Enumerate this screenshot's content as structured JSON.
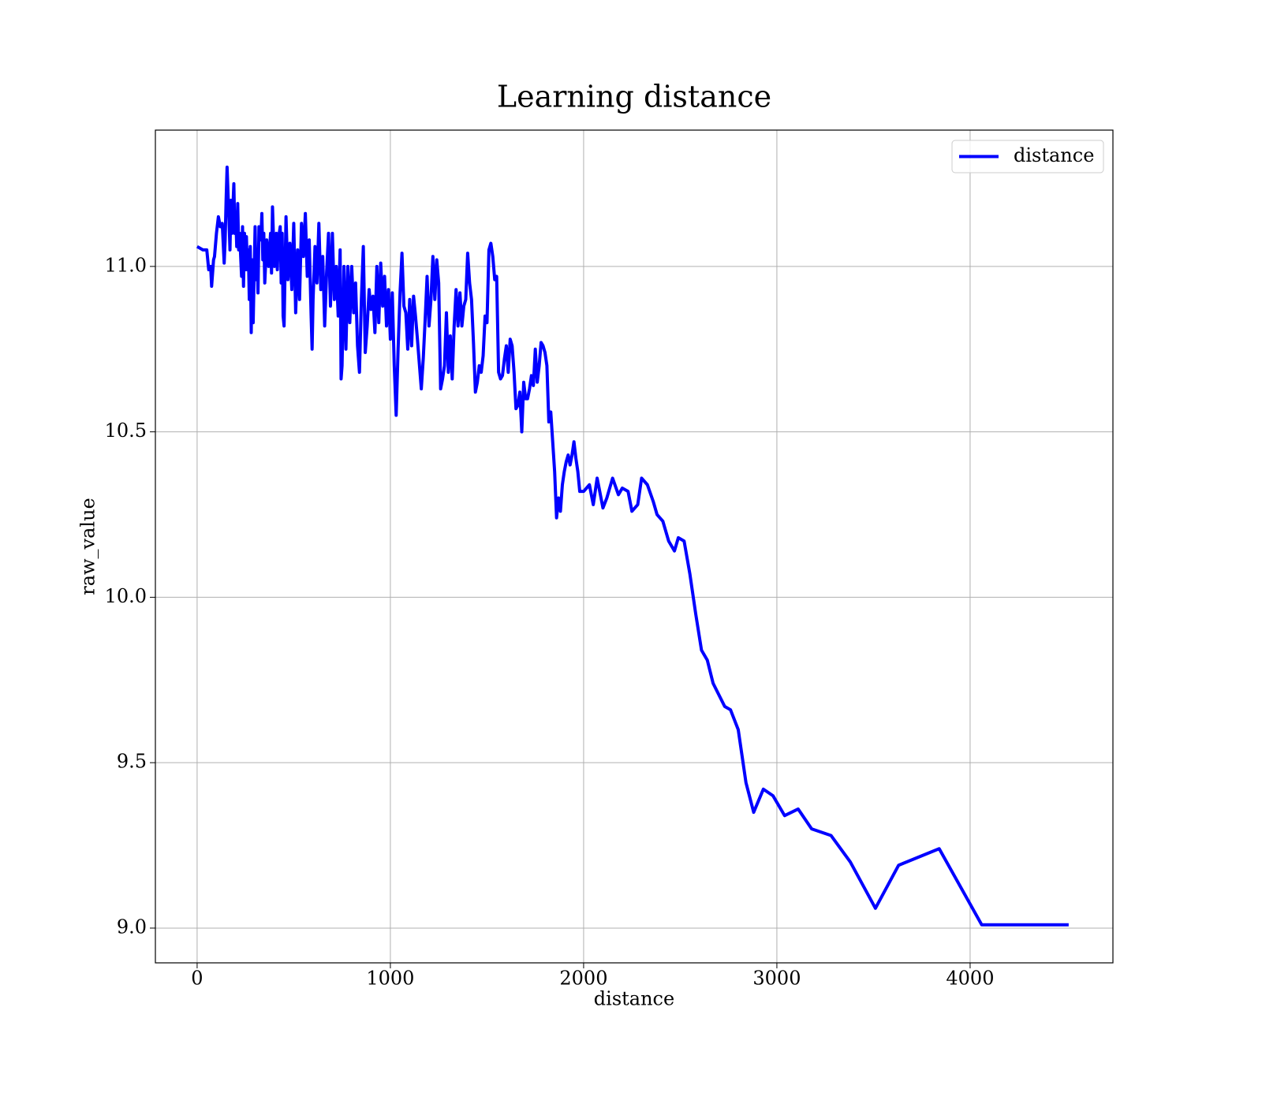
{
  "chart_data": {
    "type": "line",
    "title": "Learning distance",
    "xlabel": "distance",
    "ylabel": "raw_value",
    "x": [
      0,
      30,
      50,
      60,
      70,
      75,
      85,
      90,
      100,
      110,
      120,
      130,
      140,
      145,
      150,
      155,
      160,
      165,
      170,
      175,
      180,
      190,
      195,
      200,
      205,
      210,
      215,
      220,
      230,
      235,
      240,
      245,
      250,
      255,
      260,
      265,
      270,
      275,
      280,
      285,
      290,
      300,
      305,
      310,
      315,
      320,
      330,
      335,
      340,
      345,
      350,
      360,
      370,
      380,
      385,
      390,
      400,
      410,
      415,
      420,
      430,
      435,
      440,
      445,
      450,
      460,
      470,
      480,
      490,
      500,
      510,
      520,
      530,
      540,
      550,
      560,
      570,
      580,
      590,
      595,
      600,
      610,
      620,
      630,
      640,
      650,
      660,
      670,
      680,
      690,
      700,
      710,
      720,
      730,
      740,
      745,
      750,
      760,
      770,
      780,
      790,
      800,
      810,
      820,
      830,
      840,
      850,
      860,
      870,
      880,
      890,
      900,
      910,
      920,
      930,
      940,
      950,
      960,
      970,
      980,
      990,
      1000,
      1010,
      1020,
      1030,
      1040,
      1050,
      1060,
      1070,
      1080,
      1090,
      1100,
      1110,
      1120,
      1130,
      1140,
      1160,
      1170,
      1180,
      1190,
      1200,
      1210,
      1220,
      1230,
      1240,
      1250,
      1260,
      1270,
      1280,
      1290,
      1300,
      1310,
      1320,
      1330,
      1340,
      1350,
      1360,
      1370,
      1380,
      1390,
      1400,
      1410,
      1420,
      1430,
      1440,
      1450,
      1460,
      1470,
      1480,
      1490,
      1500,
      1510,
      1520,
      1530,
      1540,
      1550,
      1560,
      1570,
      1580,
      1590,
      1600,
      1610,
      1620,
      1630,
      1640,
      1650,
      1660,
      1670,
      1680,
      1690,
      1700,
      1710,
      1720,
      1730,
      1740,
      1750,
      1760,
      1770,
      1780,
      1790,
      1800,
      1810,
      1820,
      1830,
      1840,
      1850,
      1860,
      1870,
      1880,
      1890,
      1900,
      1910,
      1920,
      1930,
      1940,
      1950,
      1960,
      1970,
      1980,
      2000,
      2030,
      2050,
      2070,
      2100,
      2120,
      2150,
      2180,
      2200,
      2230,
      2250,
      2280,
      2300,
      2330,
      2360,
      2380,
      2410,
      2440,
      2470,
      2490,
      2520,
      2550,
      2580,
      2610,
      2640,
      2670,
      2730,
      2760,
      2800,
      2840,
      2880,
      2930,
      2980,
      3040,
      3110,
      3180,
      3280,
      3380,
      3510,
      3630,
      3840,
      4060,
      4510
    ],
    "series": [
      {
        "name": "distance",
        "color": "#0000ff",
        "values": [
          11.06,
          11.05,
          11.05,
          10.99,
          11.0,
          10.94,
          11.02,
          11.03,
          11.1,
          11.15,
          11.12,
          11.13,
          11.01,
          11.08,
          11.2,
          11.3,
          11.22,
          11.14,
          11.05,
          11.2,
          11.1,
          11.25,
          11.1,
          11.15,
          11.06,
          11.19,
          11.05,
          11.1,
          10.97,
          11.12,
          10.94,
          11.1,
          10.99,
          11.09,
          10.99,
          11.05,
          10.9,
          11.06,
          10.8,
          11.02,
          10.83,
          11.12,
          10.96,
          11.05,
          10.92,
          11.12,
          11.08,
          11.16,
          11.02,
          11.1,
          10.95,
          11.08,
          11.0,
          11.1,
          10.98,
          11.18,
          11.0,
          11.1,
          10.99,
          11.08,
          11.12,
          10.95,
          11.1,
          10.85,
          10.82,
          11.15,
          10.96,
          11.07,
          10.93,
          11.13,
          10.86,
          11.05,
          10.9,
          11.13,
          11.03,
          11.16,
          10.97,
          11.08,
          10.85,
          10.75,
          10.9,
          11.06,
          10.95,
          11.13,
          10.93,
          11.03,
          10.82,
          10.98,
          11.1,
          10.88,
          11.1,
          10.9,
          11.0,
          10.85,
          11.05,
          10.66,
          10.7,
          11.0,
          10.75,
          11.0,
          10.83,
          11.0,
          10.86,
          10.95,
          10.76,
          10.68,
          10.9,
          11.06,
          10.74,
          10.82,
          10.93,
          10.87,
          10.91,
          10.8,
          11.0,
          10.83,
          11.01,
          10.88,
          10.97,
          10.82,
          10.93,
          10.78,
          10.92,
          10.7,
          10.55,
          10.75,
          10.92,
          11.04,
          10.88,
          10.86,
          10.75,
          10.9,
          10.76,
          10.91,
          10.85,
          10.78,
          10.63,
          10.72,
          10.84,
          10.97,
          10.82,
          10.9,
          11.03,
          10.9,
          11.02,
          10.95,
          10.63,
          10.66,
          10.7,
          10.86,
          10.68,
          10.79,
          10.66,
          10.82,
          10.93,
          10.82,
          10.92,
          10.82,
          10.88,
          10.9,
          11.04,
          10.95,
          10.9,
          10.77,
          10.62,
          10.65,
          10.7,
          10.68,
          10.73,
          10.85,
          10.83,
          11.05,
          11.07,
          11.03,
          10.96,
          10.97,
          10.68,
          10.66,
          10.67,
          10.72,
          10.76,
          10.68,
          10.78,
          10.76,
          10.68,
          10.57,
          10.58,
          10.62,
          10.5,
          10.65,
          10.6,
          10.6,
          10.63,
          10.67,
          10.64,
          10.75,
          10.65,
          10.7,
          10.77,
          10.76,
          10.74,
          10.7,
          10.53,
          10.56,
          10.47,
          10.38,
          10.24,
          10.3,
          10.26,
          10.34,
          10.38,
          10.41,
          10.43,
          10.4,
          10.43,
          10.47,
          10.42,
          10.38,
          10.32,
          10.32,
          10.34,
          10.28,
          10.36,
          10.27,
          10.3,
          10.36,
          10.31,
          10.33,
          10.32,
          10.26,
          10.28,
          10.36,
          10.34,
          10.29,
          10.25,
          10.23,
          10.17,
          10.14,
          10.18,
          10.17,
          10.07,
          9.95,
          9.84,
          9.81,
          9.74,
          9.67,
          9.66,
          9.6,
          9.44,
          9.35,
          9.42,
          9.4,
          9.34,
          9.36,
          9.3,
          9.28,
          9.2,
          9.06,
          9.19,
          9.24,
          9.01,
          9.01
        ]
      }
    ],
    "xlim": [
      -216,
      4739
    ],
    "xticks": [
      0,
      1000,
      2000,
      3000,
      4000
    ],
    "ylim": [
      8.895,
      11.412
    ],
    "yticks": [
      {
        "value": 9,
        "label": "9.0"
      },
      9.5,
      {
        "value": 10,
        "label": "10.0"
      },
      10.5,
      {
        "value": 11,
        "label": "11.0"
      }
    ],
    "grid": true,
    "legend": "upper right"
  }
}
